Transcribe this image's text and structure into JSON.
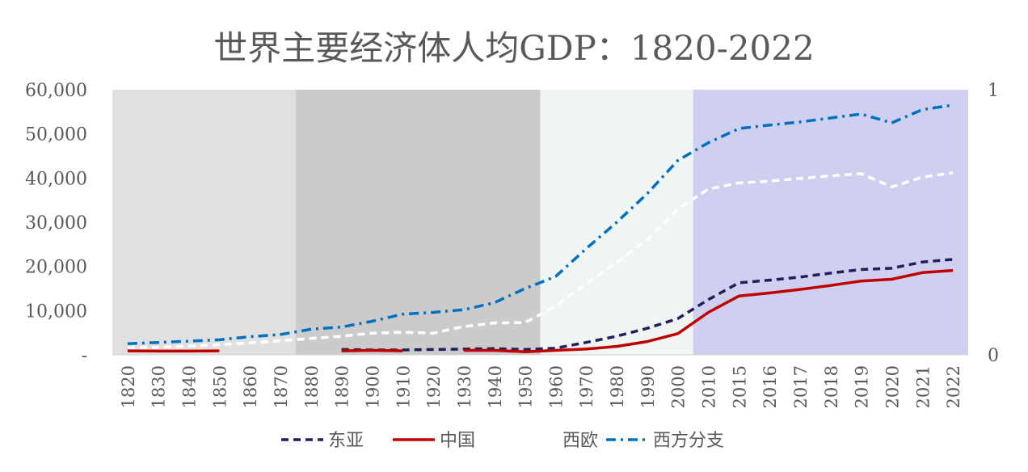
{
  "chart_data": {
    "type": "line",
    "title": "世界主要经济体人均GDP：1820-2022",
    "categories": [
      "1820",
      "1830",
      "1840",
      "1850",
      "1860",
      "1870",
      "1880",
      "1890",
      "1900",
      "1910",
      "1920",
      "1930",
      "1940",
      "1950",
      "1960",
      "1970",
      "1980",
      "1990",
      "2000",
      "2010",
      "2015",
      "2016",
      "2017",
      "2018",
      "2019",
      "2020",
      "2021",
      "2022"
    ],
    "y_left": {
      "min": 0,
      "max": 60000,
      "ticks": [
        "-",
        "10,000",
        "20,000",
        "30,000",
        "40,000",
        "50,000",
        "60,000"
      ],
      "tick_values": [
        0,
        10000,
        20000,
        30000,
        40000,
        50000,
        60000
      ]
    },
    "y_right": {
      "min": 0,
      "max": 1,
      "ticks": [
        "0",
        "1"
      ],
      "tick_values": [
        0,
        1
      ]
    },
    "background_bands": [
      {
        "from_index": -0.5,
        "to_index": 5.5,
        "color": "#e0e0e0"
      },
      {
        "from_index": 5.5,
        "to_index": 13.5,
        "color": "#cbcbcb"
      },
      {
        "from_index": 13.5,
        "to_index": 18.5,
        "color": "#eff5f3"
      },
      {
        "from_index": 18.5,
        "to_index": 27.5,
        "color": "#cfcfef"
      }
    ],
    "series": [
      {
        "name": "东亚",
        "color": "#1f1f5e",
        "style": "dash",
        "values": [
          null,
          null,
          null,
          null,
          null,
          null,
          null,
          1200,
          1100,
          1100,
          1200,
          1300,
          1400,
          1200,
          1500,
          2800,
          4200,
          6000,
          8200,
          12500,
          16300,
          16900,
          17600,
          18500,
          19300,
          19600,
          21000,
          21600
        ]
      },
      {
        "name": "中国",
        "color": "#c00000",
        "style": "solid",
        "values": [
          900,
          850,
          850,
          900,
          null,
          null,
          null,
          900,
          1000,
          900,
          null,
          1000,
          1000,
          700,
          1000,
          1300,
          1900,
          3000,
          4800,
          9600,
          13300,
          14000,
          14800,
          15700,
          16700,
          17100,
          18600,
          19100
        ]
      },
      {
        "name": "西欧",
        "color": "#ffffff",
        "style": "dash",
        "values": [
          1600,
          1700,
          2000,
          2300,
          2700,
          3200,
          3700,
          4200,
          4900,
          5100,
          4900,
          6400,
          7200,
          7300,
          11000,
          16000,
          21000,
          26000,
          33000,
          37500,
          38900,
          39300,
          39900,
          40500,
          41000,
          38000,
          40200,
          41200
        ]
      },
      {
        "name": "西方分支",
        "color": "#0070c0",
        "style": "dashdot",
        "values": [
          2500,
          2800,
          3100,
          3400,
          4100,
          4600,
          5800,
          6300,
          7600,
          9200,
          9600,
          10200,
          11800,
          15000,
          17700,
          24000,
          30000,
          36500,
          44000,
          48000,
          51200,
          52000,
          52700,
          53600,
          54500,
          52500,
          55500,
          56500
        ]
      }
    ],
    "legend_position": "bottom"
  }
}
